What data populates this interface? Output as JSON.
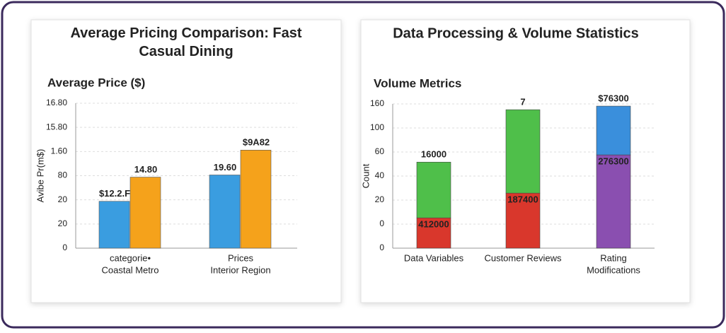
{
  "charts": [
    {
      "type": "bar",
      "title": "Average Pricing Comparison: Fast Casual Dining",
      "subtitle": "Average Price ($)",
      "ylabel": "Avibe Pr(m$)",
      "categories": [
        [
          "categorie•",
          "Coastal Metro"
        ],
        [
          "Prices",
          "Interior Region"
        ]
      ],
      "series": [
        {
          "color": "#3a9de0",
          "values": [
            1.94,
            3.03
          ],
          "value_labels": [
            "$12.2.F",
            "19.60"
          ]
        },
        {
          "color": "#f5a21b",
          "values": [
            2.94,
            4.06
          ],
          "value_labels": [
            "14.80",
            "$9A82"
          ]
        }
      ],
      "ylim": [
        0,
        6
      ],
      "yticks": [
        0,
        {
          "value": 1,
          "label": "20"
        },
        {
          "value": 2,
          "label": "20"
        },
        {
          "value": 3,
          "label": "80"
        },
        {
          "value": 4,
          "label": "1.60"
        },
        {
          "value": 5,
          "label": "15.80"
        },
        {
          "value": 6,
          "label": "16.80"
        }
      ],
      "grid": true
    },
    {
      "type": "stacked_bar",
      "title": "Data Processing & Volume Statistics",
      "subtitle": "Volume Metrics",
      "ylabel": "Count",
      "categories": [
        [
          "Data Variables"
        ],
        [
          "Customer Reviews"
        ],
        [
          "Rating",
          "Modifications"
        ]
      ],
      "series": [
        {
          "colors": [
            "#d9372c",
            "#d9372c",
            "#8a4fb0"
          ],
          "values": [
            1.26,
            2.29,
            3.88
          ],
          "value_labels": [
            "412000",
            "187400",
            "276300"
          ]
        },
        {
          "colors": [
            "#4fbf4a",
            "#4fbf4a",
            "#3a8fdc"
          ],
          "values": [
            2.32,
            3.47,
            2.03
          ],
          "value_labels": [
            "16000",
            "7",
            "$76300"
          ]
        }
      ],
      "ylim": [
        0,
        6
      ],
      "yticks": [
        0,
        {
          "value": 1,
          "label": "0"
        },
        {
          "value": 2,
          "label": "20"
        },
        {
          "value": 3,
          "label": "40"
        },
        {
          "value": 4,
          "label": "60"
        },
        {
          "value": 5,
          "label": "100"
        },
        {
          "value": 6,
          "label": "160"
        }
      ],
      "grid": true
    }
  ]
}
